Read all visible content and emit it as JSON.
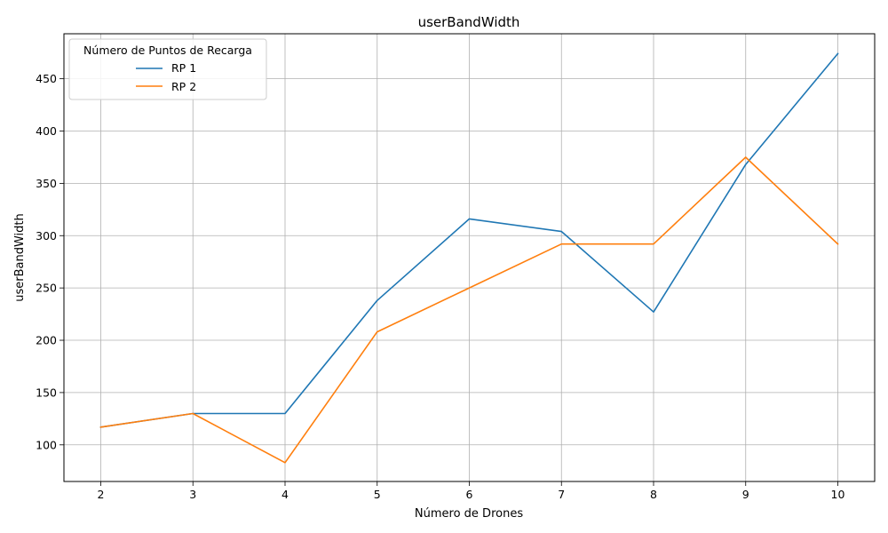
{
  "chart_data": {
    "type": "line",
    "title": "userBandWidth",
    "xlabel": "Número de Drones",
    "ylabel": "userBandWidth",
    "x": [
      2,
      3,
      4,
      5,
      6,
      7,
      8,
      9,
      10
    ],
    "xlim": [
      1.6,
      10.4
    ],
    "ylim": [
      65,
      493
    ],
    "xticks": [
      "2",
      "3",
      "4",
      "5",
      "6",
      "7",
      "8",
      "9",
      "10"
    ],
    "yticks": [
      100,
      150,
      200,
      250,
      300,
      350,
      400,
      450
    ],
    "grid": true,
    "legend": {
      "title": "Número de Puntos de Recarga",
      "placement": "top-left"
    },
    "series": [
      {
        "name": "RP 1",
        "color": "#1f77b4",
        "values": [
          117,
          130,
          130,
          238,
          316,
          304,
          227,
          368,
          474
        ]
      },
      {
        "name": "RP 2",
        "color": "#ff7f0e",
        "values": [
          117,
          130,
          83,
          208,
          250,
          292,
          292,
          375,
          292
        ]
      }
    ]
  }
}
